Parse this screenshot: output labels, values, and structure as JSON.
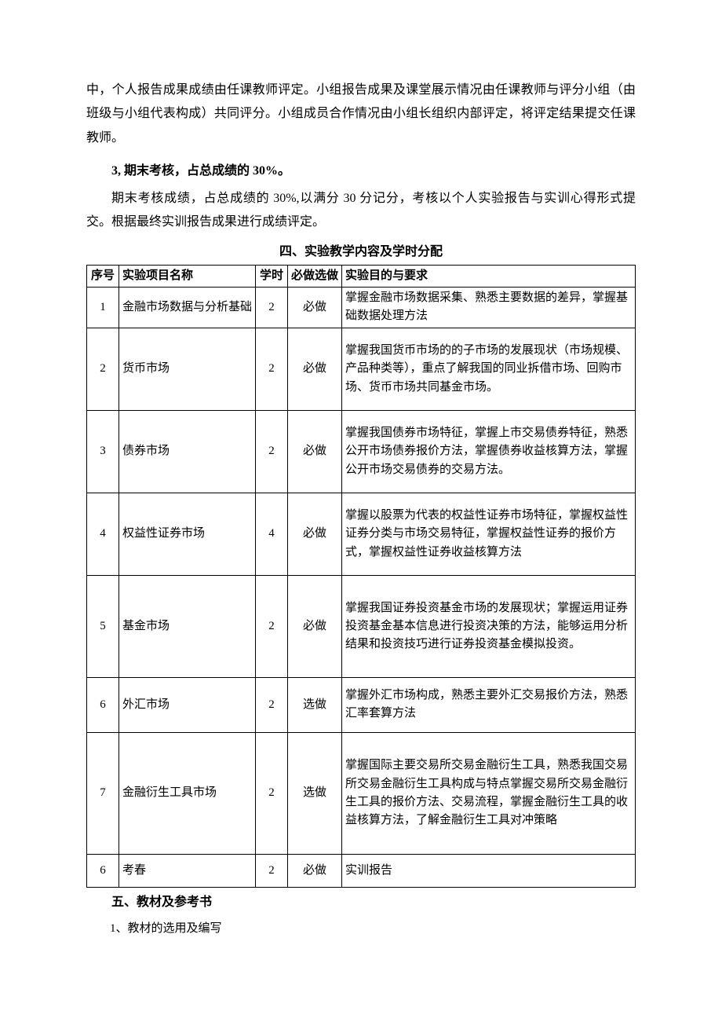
{
  "paragraphs": {
    "p1": "中，个人报告成果成绩由任课教师评定。小组报告成果及课堂展示情况由任课教师与评分小组（由班级与小组代表构成）共同评分。小组成员合作情况由小组长组织内部评定，将评定结果提交任课教师。",
    "h3": "3, 期末考核，占总成绩的 30%。",
    "p2": "期末考核成绩，占总成绩的 30%,以满分 30 分记分，考核以个人实验报告与实训心得形式提交。根据最终实训报告成果进行成绩评定。",
    "section4": "四、实验教学内容及学时分配",
    "section5": "五、教材及参考书",
    "sub1": "1、教材的选用及编写"
  },
  "table": {
    "headers": {
      "seq": "序号",
      "name": "实验项目名称",
      "hours": "学时",
      "req": "必做选做",
      "obj": "实验目的与要求"
    },
    "rows": [
      {
        "seq": "1",
        "name": "金融市场数据与分析基础",
        "hours": "2",
        "req": "必做",
        "obj": "掌握金融市场数据采集、熟悉主要数据的差异，掌握基础数据处理方法"
      },
      {
        "seq": "2",
        "name": "货币市场",
        "hours": "2",
        "req": "必做",
        "obj": "掌握我国货币市场的的子市场的发展现状（市场规模、产品种类等），重点了解我国的同业拆借市场、回购市场、货币市场共同基金市场。"
      },
      {
        "seq": "3",
        "name": "债券市场",
        "hours": "2",
        "req": "必做",
        "obj": "掌握我国债券市场特征，掌握上市交易债券特征，熟悉公开市场债券报价方法，掌握债券收益核算方法，掌握公开市场交易债券的交易方法。"
      },
      {
        "seq": "4",
        "name": "权益性证券市场",
        "hours": "4",
        "req": "必做",
        "obj": "掌握以股票为代表的权益性证券市场特征，掌握权益性证券分类与市场交易特征，掌握权益性证券的报价方式，掌握权益性证券收益核算方法"
      },
      {
        "seq": "5",
        "name": "基金市场",
        "hours": "2",
        "req": "必做",
        "obj": "掌握我国证券投资基金市场的发展现状；掌握运用证券投资基金基本信息进行投资决策的方法，能够运用分析结果和投资技巧进行证券投资基金模拟投资。"
      },
      {
        "seq": "6",
        "name": "外汇市场",
        "hours": "2",
        "req": "选做",
        "obj": "掌握外汇市场构成，熟悉主要外汇交易报价方法，熟悉汇率套算方法"
      },
      {
        "seq": "7",
        "name": "金融衍生工具市场",
        "hours": "2",
        "req": "选做",
        "obj": "掌握国际主要交易所交易金融衍生工具，熟悉我国交易所交易金融衍生工具构成与特点掌握交易所交易金融衍生工具的报价方法、交易流程，掌握金融衍生工具的收益核算方法，了解金融衍生工具对冲策略"
      },
      {
        "seq": "6",
        "name": "考春",
        "hours": "2",
        "req": "必做",
        "obj": "实训报告"
      }
    ],
    "row_heights": [
      "52",
      "105",
      "105",
      "105",
      "130",
      "70",
      "155",
      "42"
    ]
  }
}
